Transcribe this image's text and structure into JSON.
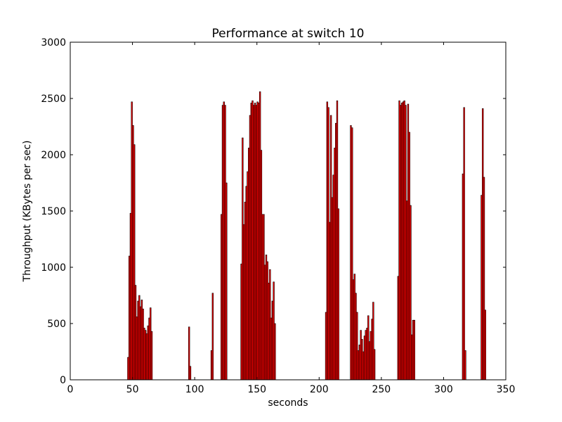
{
  "chart_data": {
    "type": "bar",
    "title": "Performance at switch 10",
    "xlabel": "seconds",
    "ylabel": "Throughput (KBytes per sec)",
    "x": [
      46,
      47,
      48,
      49,
      50,
      51,
      52,
      53,
      54,
      55,
      56,
      57,
      58,
      59,
      60,
      61,
      62,
      63,
      64,
      65,
      95,
      96,
      113,
      114,
      121,
      122,
      123,
      124,
      125,
      137,
      138,
      139,
      140,
      141,
      142,
      143,
      144,
      145,
      146,
      147,
      148,
      149,
      150,
      151,
      152,
      153,
      154,
      155,
      156,
      157,
      158,
      159,
      160,
      161,
      162,
      163,
      164,
      205,
      206,
      207,
      208,
      209,
      210,
      211,
      212,
      213,
      214,
      215,
      225,
      226,
      227,
      228,
      229,
      230,
      231,
      232,
      233,
      234,
      235,
      236,
      237,
      238,
      239,
      240,
      241,
      242,
      243,
      244,
      263,
      264,
      265,
      266,
      267,
      268,
      269,
      270,
      271,
      272,
      273,
      274,
      275,
      276,
      315,
      316,
      317,
      330,
      331,
      332,
      333
    ],
    "values": [
      200,
      1100,
      1480,
      2470,
      2260,
      2090,
      840,
      560,
      700,
      750,
      650,
      710,
      630,
      460,
      440,
      410,
      480,
      550,
      640,
      430,
      470,
      120,
      260,
      770,
      1470,
      2440,
      2470,
      2440,
      1750,
      1030,
      2150,
      1380,
      1580,
      1720,
      1850,
      2060,
      2350,
      2460,
      2480,
      2440,
      2460,
      2440,
      2470,
      2460,
      2560,
      2040,
      1470,
      1470,
      1020,
      1110,
      1050,
      860,
      980,
      550,
      700,
      870,
      500,
      600,
      2470,
      2420,
      1400,
      2350,
      1620,
      1820,
      2060,
      2280,
      2480,
      1520,
      2260,
      2240,
      890,
      940,
      770,
      600,
      260,
      310,
      440,
      360,
      250,
      390,
      440,
      460,
      570,
      340,
      430,
      540,
      690,
      270,
      920,
      2480,
      2440,
      2460,
      2470,
      2480,
      2440,
      1590,
      2450,
      2200,
      1550,
      400,
      530,
      530,
      1830,
      2420,
      260,
      1640,
      2410,
      1800,
      620
    ],
    "bar_width": 1,
    "color": "#ff0000",
    "edgecolor": "#000000",
    "xlim": [
      0,
      350
    ],
    "xticks": [
      0,
      50,
      100,
      150,
      200,
      250,
      300,
      350
    ],
    "ylim": [
      0,
      3000
    ],
    "yticks": [
      0,
      500,
      1000,
      1500,
      2000,
      2500,
      3000
    ],
    "grid": false
  }
}
